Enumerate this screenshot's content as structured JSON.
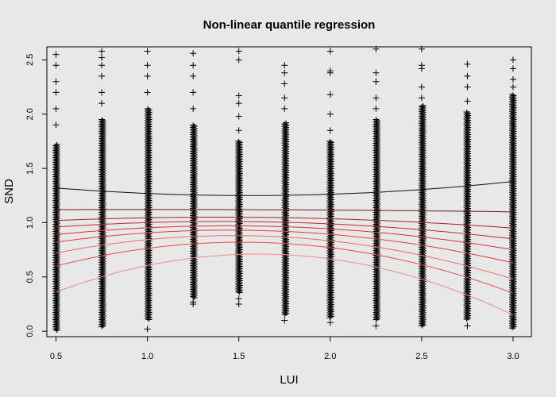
{
  "chart_data": {
    "type": "scatter",
    "title": "Non-linear quantile regression",
    "xlabel": "LUI",
    "ylabel": "SND",
    "xlim": [
      0.45,
      3.1
    ],
    "ylim": [
      -0.05,
      2.62
    ],
    "x_ticks": [
      "0.5",
      "1.0",
      "1.5",
      "2.0",
      "2.5",
      "3.0"
    ],
    "y_ticks": [
      "0.0",
      "0.5",
      "1.0",
      "1.5",
      "2.0",
      "2.5"
    ],
    "grid": false,
    "legend": "none",
    "point_symbol": "+",
    "point_color": "#000000",
    "scatter_columns": [
      {
        "x": 0.5,
        "dense": [
          0.0,
          1.72
        ],
        "outliers": [
          1.9,
          2.05,
          2.2,
          2.3,
          2.45,
          2.55
        ]
      },
      {
        "x": 0.75,
        "dense": [
          0.03,
          1.95
        ],
        "outliers": [
          2.1,
          2.2,
          2.35,
          2.45,
          2.52,
          2.58
        ]
      },
      {
        "x": 1.0,
        "dense": [
          0.1,
          2.05
        ],
        "outliers": [
          0.02,
          2.2,
          2.35,
          2.45,
          2.58
        ]
      },
      {
        "x": 1.25,
        "dense": [
          0.3,
          1.9
        ],
        "outliers": [
          0.25,
          0.27,
          2.05,
          2.2,
          2.35,
          2.45,
          2.56
        ]
      },
      {
        "x": 1.5,
        "dense": [
          0.35,
          1.75
        ],
        "outliers": [
          0.25,
          0.3,
          1.85,
          1.98,
          2.1,
          2.17,
          2.5,
          2.58
        ]
      },
      {
        "x": 1.75,
        "dense": [
          0.15,
          1.92
        ],
        "outliers": [
          0.1,
          2.05,
          2.15,
          2.28,
          2.38,
          2.45
        ]
      },
      {
        "x": 2.0,
        "dense": [
          0.12,
          1.75
        ],
        "outliers": [
          0.08,
          1.85,
          2.0,
          2.18,
          2.38,
          2.4,
          2.58
        ]
      },
      {
        "x": 2.25,
        "dense": [
          0.1,
          1.95
        ],
        "outliers": [
          0.05,
          2.05,
          2.15,
          2.3,
          2.38,
          2.6
        ]
      },
      {
        "x": 2.5,
        "dense": [
          0.05,
          2.08
        ],
        "outliers": [
          2.15,
          2.25,
          2.42,
          2.45,
          2.6
        ]
      },
      {
        "x": 2.75,
        "dense": [
          0.1,
          2.02
        ],
        "outliers": [
          0.05,
          2.12,
          2.25,
          2.35,
          2.46
        ]
      },
      {
        "x": 3.0,
        "dense": [
          0.02,
          2.18
        ],
        "outliers": [
          2.25,
          2.32,
          2.42,
          2.5
        ]
      }
    ],
    "series": [
      {
        "color": "#111111",
        "y_at_0.5": 1.32,
        "y_at_1.55": 1.25,
        "y_at_3.0": 1.38
      },
      {
        "color": "#6b1c1c",
        "y_at_0.5": 1.12,
        "y_at_1.55": 1.12,
        "y_at_3.0": 1.1
      },
      {
        "color": "#9e2424",
        "y_at_0.5": 1.02,
        "y_at_1.55": 1.05,
        "y_at_3.0": 0.95
      },
      {
        "color": "#c42a2a",
        "y_at_0.5": 0.96,
        "y_at_1.55": 1.01,
        "y_at_3.0": 0.85
      },
      {
        "color": "#d83232",
        "y_at_0.5": 0.89,
        "y_at_1.55": 0.97,
        "y_at_3.0": 0.75
      },
      {
        "color": "#e33d3d",
        "y_at_0.5": 0.82,
        "y_at_1.55": 0.93,
        "y_at_3.0": 0.63
      },
      {
        "color": "#ee6b6b",
        "y_at_0.5": 0.72,
        "y_at_1.55": 0.88,
        "y_at_3.0": 0.48
      },
      {
        "color": "#ea4a4a",
        "y_at_0.5": 0.6,
        "y_at_1.55": 0.82,
        "y_at_3.0": 0.35
      },
      {
        "color": "#f08a8a",
        "y_at_0.5": 0.36,
        "y_at_1.55": 0.71,
        "y_at_3.0": 0.15
      }
    ]
  }
}
